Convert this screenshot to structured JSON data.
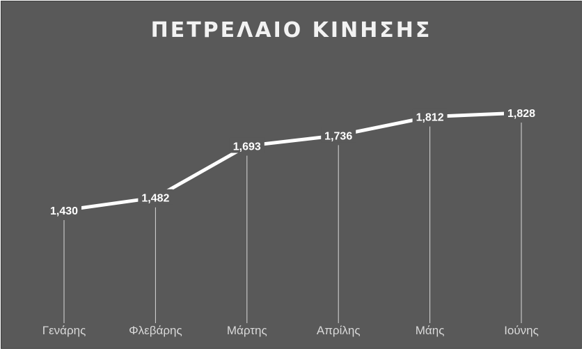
{
  "chart_data": {
    "type": "line",
    "title": "ΠΕΤΡΕΛΑΙΟ ΚΙΝΗΣΗΣ",
    "categories": [
      "Γενάρης",
      "Φλεβάρης",
      "Μάρτης",
      "Απρίλης",
      "Μάης",
      "Ιούνης"
    ],
    "values": [
      1.43,
      1.482,
      1.693,
      1.736,
      1.812,
      1.828
    ],
    "data_labels": [
      "1,430",
      "1,482",
      "1,693",
      "1,736",
      "1,812",
      "1,828"
    ],
    "drop_lines": true,
    "grid": false,
    "legend": "none",
    "ylim": [
      1.0,
      1.9
    ]
  },
  "colors": {
    "background": "#595959",
    "line": "#ffffff",
    "drop_line": "#d9d9d9",
    "text": "#ffffff"
  }
}
